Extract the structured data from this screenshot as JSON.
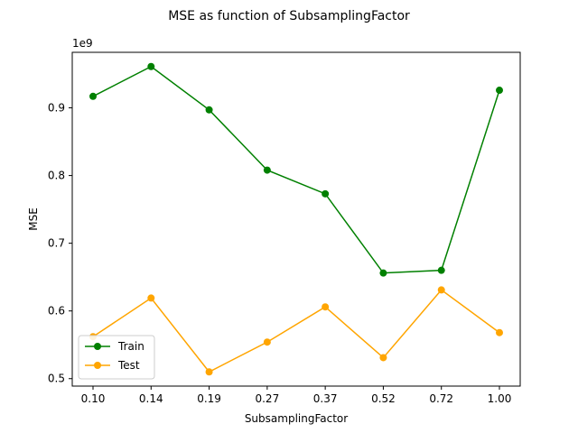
{
  "chart_data": {
    "type": "line",
    "title": "MSE as function of SubsamplingFactor",
    "xlabel": "SubsamplingFactor",
    "ylabel": "MSE",
    "y_offset_label": "1e9",
    "categories": [
      "0.10",
      "0.14",
      "0.19",
      "0.27",
      "0.37",
      "0.52",
      "0.72",
      "1.00"
    ],
    "yticks": [
      {
        "value": 0.5,
        "label": "0.5"
      },
      {
        "value": 0.6,
        "label": "0.6"
      },
      {
        "value": 0.7,
        "label": "0.7"
      },
      {
        "value": 0.8,
        "label": "0.8"
      },
      {
        "value": 0.9,
        "label": "0.9"
      }
    ],
    "ylim": [
      0.489,
      0.982
    ],
    "grid": false,
    "legend_position": "lower-left",
    "series": [
      {
        "name": "Train",
        "color": "#008000",
        "values": [
          0.917,
          0.961,
          0.897,
          0.808,
          0.773,
          0.656,
          0.66,
          0.926
        ]
      },
      {
        "name": "Test",
        "color": "#ffa500",
        "values": [
          0.562,
          0.619,
          0.51,
          0.554,
          0.606,
          0.531,
          0.631,
          0.568
        ]
      }
    ]
  }
}
